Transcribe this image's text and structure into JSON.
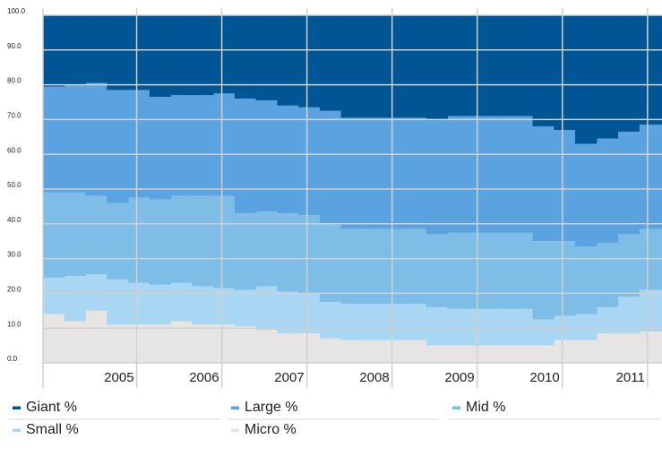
{
  "chart_data": {
    "type": "stacked-step-area",
    "x": [
      2003.9,
      2004.15,
      2004.4,
      2004.65,
      2004.9,
      2005.15,
      2005.4,
      2005.65,
      2005.9,
      2006.15,
      2006.4,
      2006.65,
      2006.9,
      2007.15,
      2007.4,
      2007.65,
      2007.9,
      2008.15,
      2008.4,
      2008.65,
      2008.9,
      2009.15,
      2009.4,
      2009.65,
      2009.9,
      2010.15,
      2010.4,
      2010.65,
      2010.9
    ],
    "series": [
      {
        "name": "Giant %",
        "color": "#005595",
        "values": [
          20.5,
          20,
          19.5,
          21.5,
          21.5,
          23.5,
          23,
          23,
          22.5,
          24,
          24.5,
          26,
          26.5,
          27.5,
          29.5,
          29.5,
          29.5,
          29.5,
          30,
          29,
          29,
          29,
          29,
          32,
          33,
          37,
          35.5,
          33.5,
          31.5
        ]
      },
      {
        "name": "Large %",
        "color": "#5ba3e0",
        "values": [
          30.5,
          31,
          32.5,
          32.5,
          31,
          29.5,
          29,
          29,
          29.5,
          33,
          32,
          31,
          31,
          32.5,
          32,
          32,
          32,
          32,
          33,
          33.5,
          33.5,
          33.5,
          33.5,
          33,
          32,
          29.5,
          30,
          29.5,
          30
        ]
      },
      {
        "name": "Mid %",
        "color": "#7dbde6",
        "values": [
          24.5,
          24,
          22.5,
          22,
          24.5,
          24.5,
          25,
          26,
          26.5,
          22,
          21.5,
          22.5,
          22.5,
          22.5,
          21.5,
          21.5,
          21.5,
          21.5,
          21,
          22,
          22,
          22,
          22,
          22.5,
          21.5,
          19.5,
          18.5,
          18,
          17.5
        ]
      },
      {
        "name": "Small %",
        "color": "#a8d6f3",
        "values": [
          10.5,
          13,
          10.5,
          13,
          12,
          11.5,
          11,
          11,
          10.5,
          10.5,
          12.5,
          12,
          11.5,
          10.5,
          10.5,
          10.5,
          10.5,
          10.5,
          11,
          10.5,
          10.5,
          10.5,
          10.5,
          7.5,
          7,
          7.5,
          7.5,
          10.5,
          12
        ]
      },
      {
        "name": "Micro %",
        "color": "#e6e5e4",
        "values": [
          14,
          12,
          15,
          11,
          11,
          11,
          12,
          11,
          11,
          10.5,
          9.5,
          8.5,
          8.5,
          7,
          6.5,
          6.5,
          6.5,
          6.5,
          5,
          5,
          5,
          5,
          5,
          5,
          6.5,
          6.5,
          8.5,
          8.5,
          9
        ]
      }
    ],
    "xlim": [
      2003.9,
      2011.17
    ],
    "xticks": [
      2005,
      2006,
      2007,
      2008,
      2009,
      2010,
      2011
    ],
    "ylim": [
      0,
      100
    ],
    "yticks": [
      {
        "value": 0,
        "label": "0.0"
      },
      {
        "value": 10,
        "label": "10.0"
      },
      {
        "value": 20,
        "label": "20.0"
      },
      {
        "value": 30,
        "label": "30.0"
      },
      {
        "value": 40,
        "label": "40.0"
      },
      {
        "value": 50,
        "label": "50.0"
      },
      {
        "value": 60,
        "label": "60.0"
      },
      {
        "value": 70,
        "label": "70.0"
      },
      {
        "value": 80,
        "label": "80.0"
      },
      {
        "value": 90,
        "label": "90.0"
      },
      {
        "value": 100,
        "label": "100.0"
      }
    ],
    "grid": true,
    "legend": "bottom"
  }
}
